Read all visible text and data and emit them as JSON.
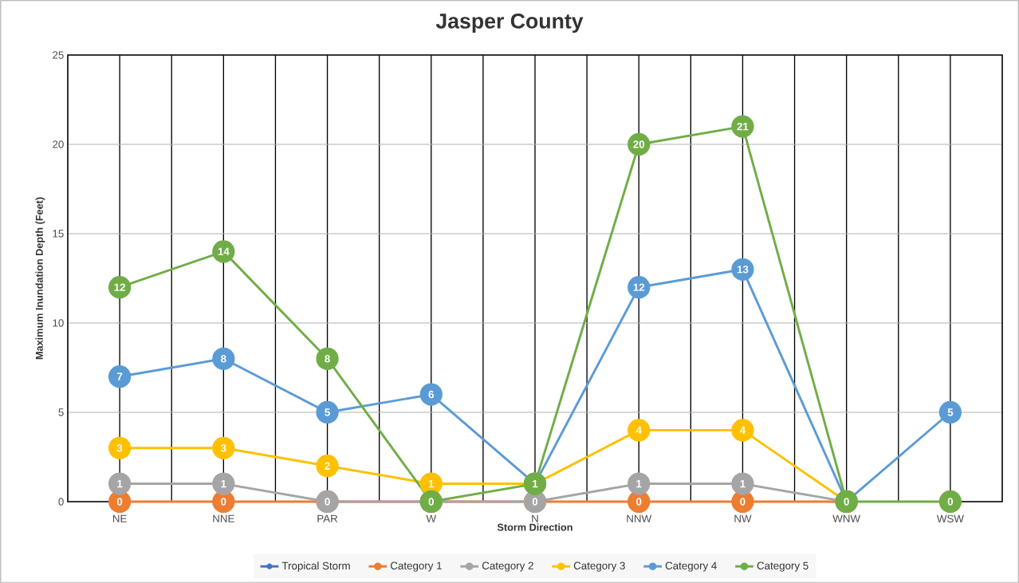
{
  "chart_data": {
    "type": "line",
    "title": "Jasper County",
    "xlabel": "Storm Direction",
    "ylabel": "Maximum Inundation Depth (Feet)",
    "categories": [
      "NE",
      "NNE",
      "PAR",
      "W",
      "N",
      "NNW",
      "NW",
      "WNW",
      "WSW"
    ],
    "ylim": [
      0,
      25
    ],
    "yticks": [
      0,
      5,
      10,
      15,
      20,
      25
    ],
    "grid": true,
    "legend": "bottom",
    "marker": "circle",
    "series": [
      {
        "name": "Tropical Storm",
        "color": "#4472c4",
        "values": [
          null,
          null,
          null,
          null,
          null,
          null,
          null,
          null,
          null
        ]
      },
      {
        "name": "Category 1",
        "color": "#ed7d31",
        "values": [
          0,
          0,
          0,
          0,
          0,
          0,
          0,
          0,
          null
        ],
        "value_labels": [
          "0",
          "0",
          null,
          null,
          null,
          "0",
          "0",
          null,
          null
        ]
      },
      {
        "name": "Category 2",
        "color": "#a5a5a5",
        "values": [
          1,
          1,
          0,
          0,
          0,
          1,
          1,
          0,
          null
        ],
        "value_labels": [
          "1",
          "1",
          "0",
          null,
          "0",
          "1",
          "1",
          null,
          null
        ]
      },
      {
        "name": "Category 3",
        "color": "#ffc000",
        "values": [
          3,
          3,
          2,
          1,
          1,
          4,
          4,
          0,
          null
        ],
        "value_labels": [
          "3",
          "3",
          "2",
          "1",
          null,
          "4",
          "4",
          null,
          null
        ]
      },
      {
        "name": "Category 4",
        "color": "#5b9bd5",
        "values": [
          7,
          8,
          5,
          6,
          1,
          12,
          13,
          0,
          5
        ],
        "value_labels": [
          "7",
          "8",
          "5",
          "6",
          null,
          "12",
          "13",
          null,
          "5"
        ]
      },
      {
        "name": "Category 5",
        "color": "#70ad47",
        "values": [
          12,
          14,
          8,
          0,
          1,
          20,
          21,
          0,
          0
        ],
        "value_labels": [
          "12",
          "14",
          "8",
          "0",
          "1",
          "20",
          "21",
          "0",
          "0"
        ]
      }
    ]
  }
}
